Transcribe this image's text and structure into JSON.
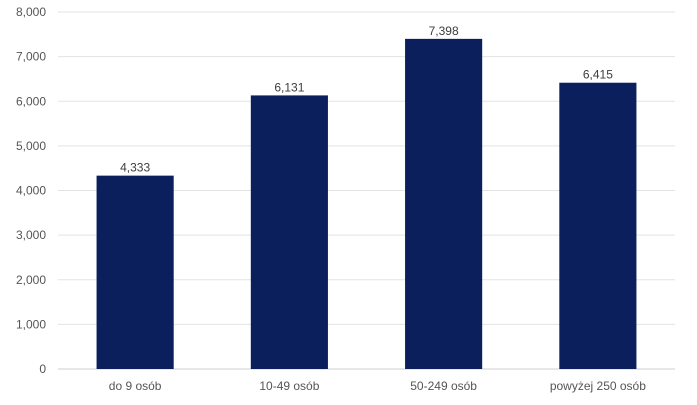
{
  "chart_data": {
    "type": "bar",
    "categories": [
      "do 9 osób",
      "10-49 osób",
      "50-249 osób",
      "powyżej 250 osób"
    ],
    "values": [
      4333,
      6131,
      7398,
      6415
    ],
    "value_labels": [
      "4,333",
      "6,131",
      "7,398",
      "6,415"
    ],
    "y_ticks": [
      0,
      1000,
      2000,
      3000,
      4000,
      5000,
      6000,
      7000,
      8000
    ],
    "y_tick_labels": [
      "0",
      "1,000",
      "2,000",
      "3,000",
      "4,000",
      "5,000",
      "6,000",
      "7,000",
      "8,000"
    ],
    "ylim": [
      0,
      8000
    ],
    "grid": true,
    "legend": "none",
    "colors": {
      "bar": "#0a1f5c",
      "grid": "#e3e3e3",
      "axis": "#cfcfcf",
      "text": "#555555",
      "value_text": "#3c3c3c"
    }
  }
}
